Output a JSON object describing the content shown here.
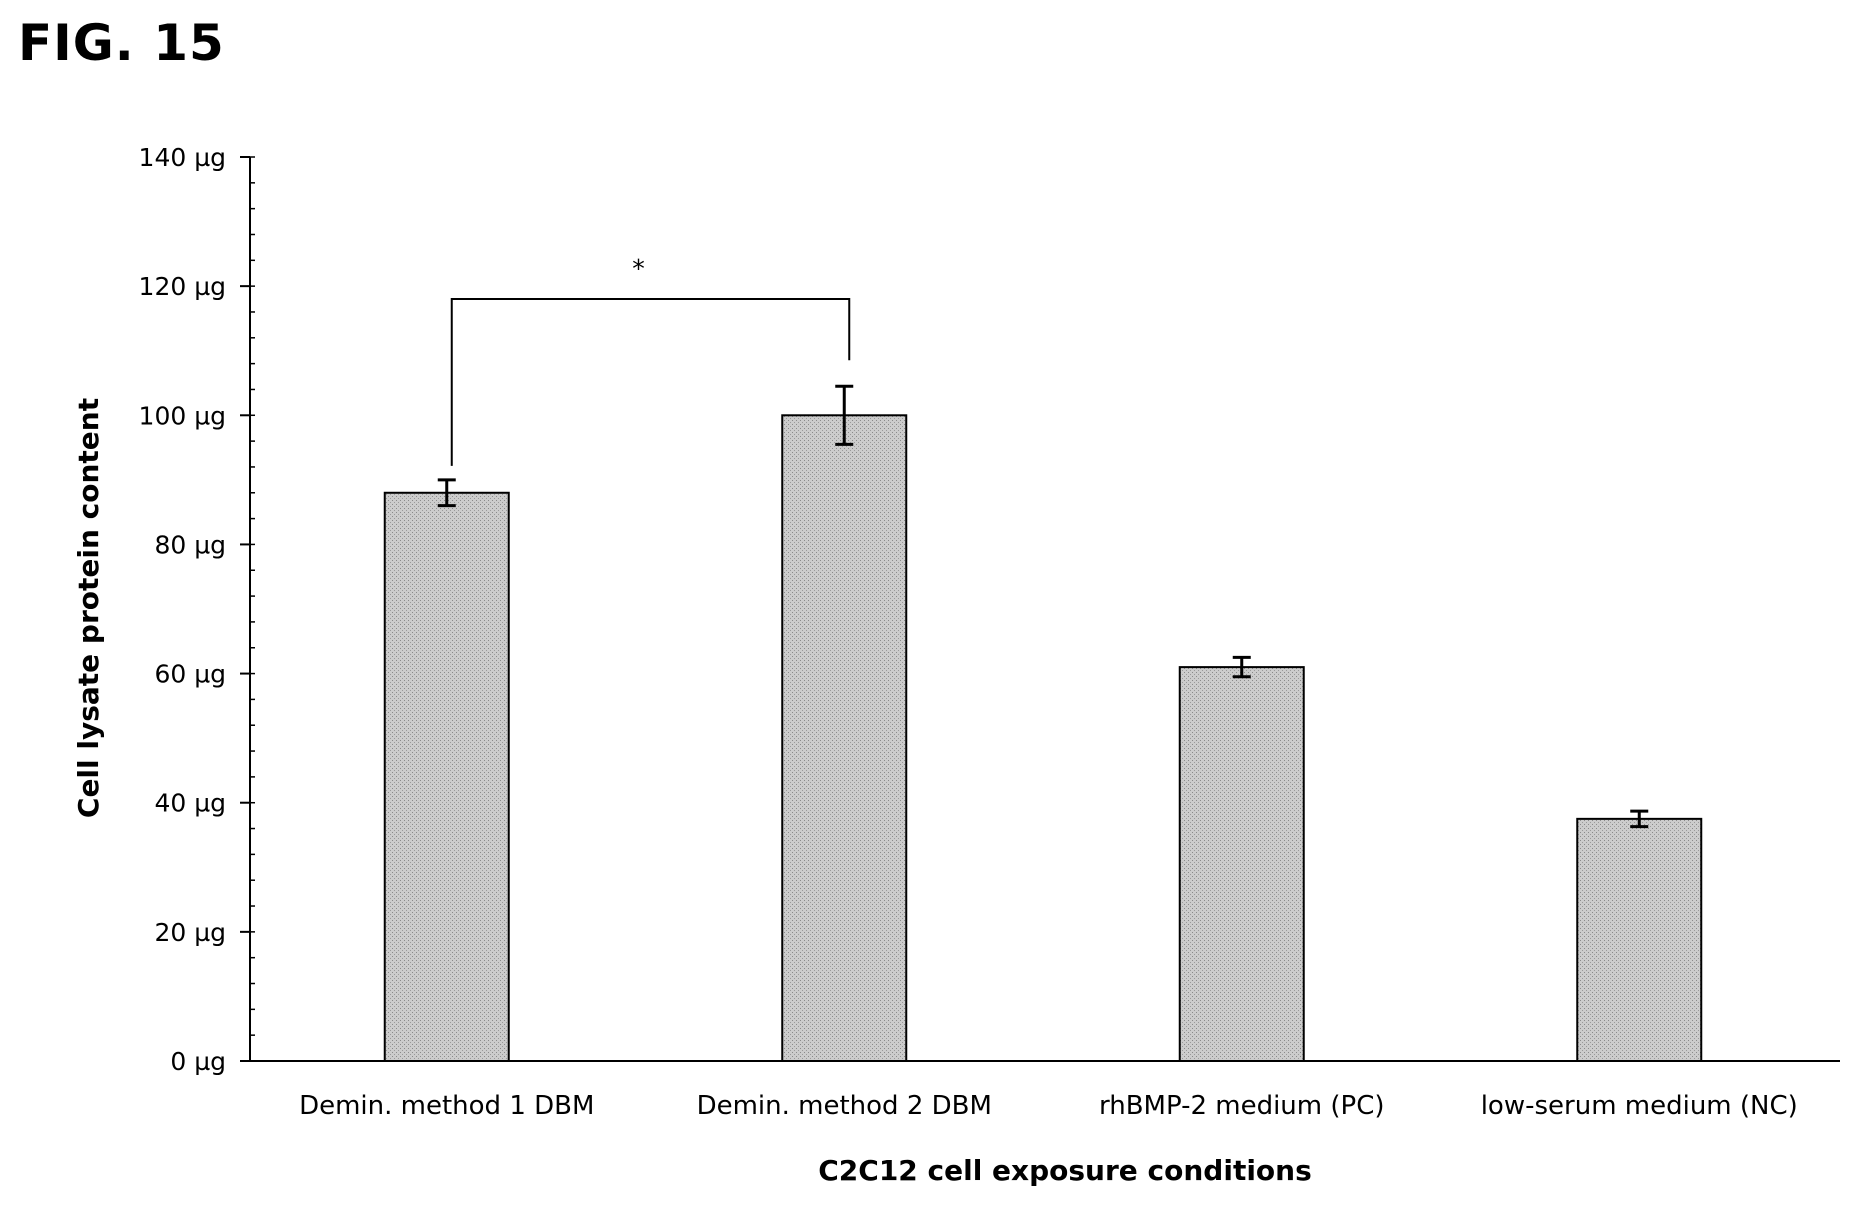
{
  "figure": {
    "label": "FIG. 15"
  },
  "chart_data": {
    "type": "bar",
    "title": "",
    "xlabel": "C2C12 cell exposure conditions",
    "ylabel": "Cell lysate protein content",
    "unit": "µg",
    "ylim": [
      0,
      140
    ],
    "ytick_values": [
      0,
      20,
      40,
      60,
      80,
      100,
      120,
      140
    ],
    "ytick_labels": [
      "0 µg",
      "20 µg",
      "40 µg",
      "60 µg",
      "80 µg",
      "100 µg",
      "120 µg",
      "140 µg"
    ],
    "categories": [
      "Demin. method 1 DBM",
      "Demin. method 2 DBM",
      "rhBMP-2 medium (PC)",
      "low-serum medium (NC)"
    ],
    "values": [
      88,
      100,
      61,
      37.5
    ],
    "errors": [
      2,
      4.5,
      1.5,
      1.2
    ],
    "bar_color": "#c8c8c8",
    "grid": false,
    "annotations": [
      {
        "type": "significance-bracket",
        "from_category": 0,
        "to_category": 1,
        "level": 118,
        "label": "*"
      }
    ]
  }
}
